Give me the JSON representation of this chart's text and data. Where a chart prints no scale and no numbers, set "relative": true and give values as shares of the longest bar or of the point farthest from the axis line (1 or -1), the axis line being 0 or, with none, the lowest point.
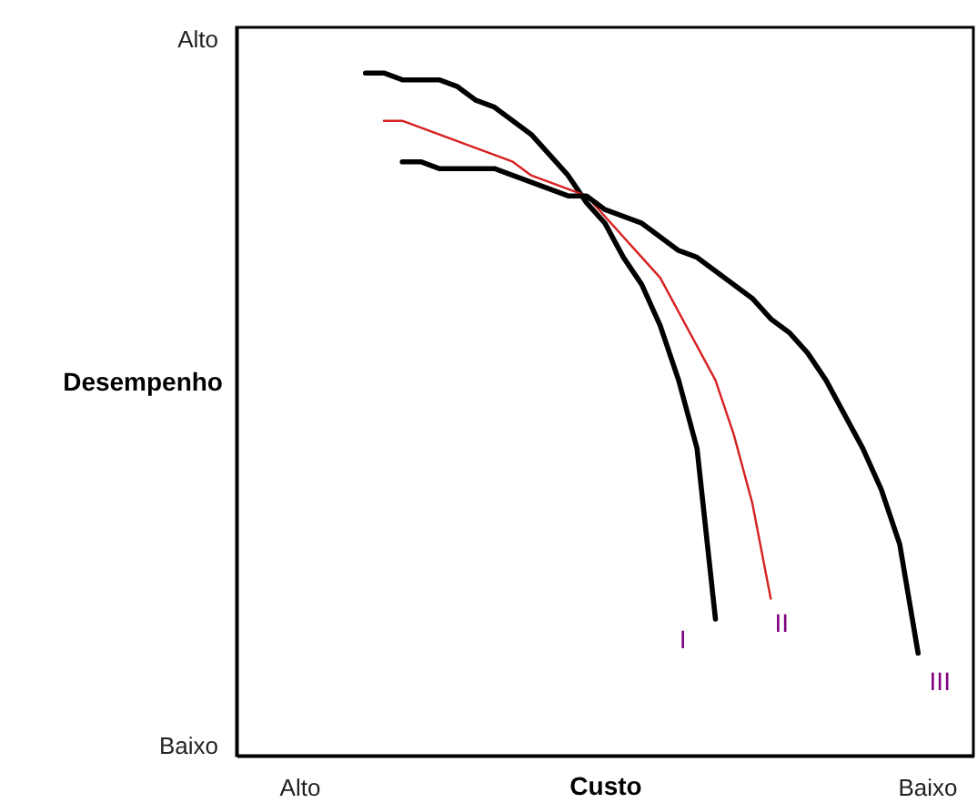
{
  "chart_data": {
    "type": "line",
    "relative": true,
    "xlabel": "Custo",
    "ylabel": "Desempenho",
    "grid": false,
    "marker": "none",
    "line_style": "solid",
    "categories": [
      null,
      null,
      null,
      null,
      null,
      null,
      null,
      null,
      null,
      null,
      null,
      null,
      null,
      null,
      null,
      null,
      null,
      null,
      null,
      null,
      null,
      null,
      null,
      null,
      null,
      null,
      null,
      null,
      null,
      null,
      null,
      null,
      null,
      null,
      null,
      null,
      null,
      null,
      null,
      null,
      null
    ],
    "series": [
      {
        "name": "I",
        "color": "#000000",
        "values": [
          null,
          null,
          null,
          null,
          null,
          null,
          null,
          1.0,
          1.0,
          0.99,
          0.99,
          0.99,
          0.98,
          0.96,
          0.95,
          0.93,
          0.91,
          0.88,
          0.85,
          0.81,
          0.78,
          0.73,
          0.69,
          0.63,
          0.55,
          0.45,
          0.2,
          null,
          null,
          null,
          null,
          null,
          null,
          null,
          null,
          null,
          null,
          null,
          null,
          null,
          null
        ]
      },
      {
        "name": "II",
        "color": "#d62020",
        "values": [
          null,
          null,
          null,
          null,
          null,
          null,
          null,
          null,
          0.93,
          0.93,
          0.92,
          0.91,
          0.9,
          0.89,
          0.88,
          0.87,
          0.85,
          0.84,
          0.83,
          0.82,
          0.79,
          0.76,
          0.73,
          0.7,
          0.65,
          0.6,
          0.55,
          0.47,
          0.37,
          0.23,
          null,
          null,
          null,
          null,
          null,
          null,
          null,
          null,
          null,
          null,
          null
        ]
      },
      {
        "name": "III",
        "color": "#000000",
        "values": [
          null,
          null,
          null,
          null,
          null,
          null,
          null,
          null,
          null,
          0.87,
          0.87,
          0.86,
          0.86,
          0.86,
          0.86,
          0.85,
          0.84,
          0.83,
          0.82,
          0.82,
          0.8,
          0.79,
          0.78,
          0.76,
          0.74,
          0.73,
          0.71,
          0.69,
          0.67,
          0.64,
          0.62,
          0.59,
          0.55,
          0.5,
          0.45,
          0.39,
          0.31,
          0.15,
          null,
          null,
          null
        ]
      }
    ],
    "annotations": [
      "Alto",
      "Baixo",
      "Alto",
      "Baixo"
    ]
  }
}
